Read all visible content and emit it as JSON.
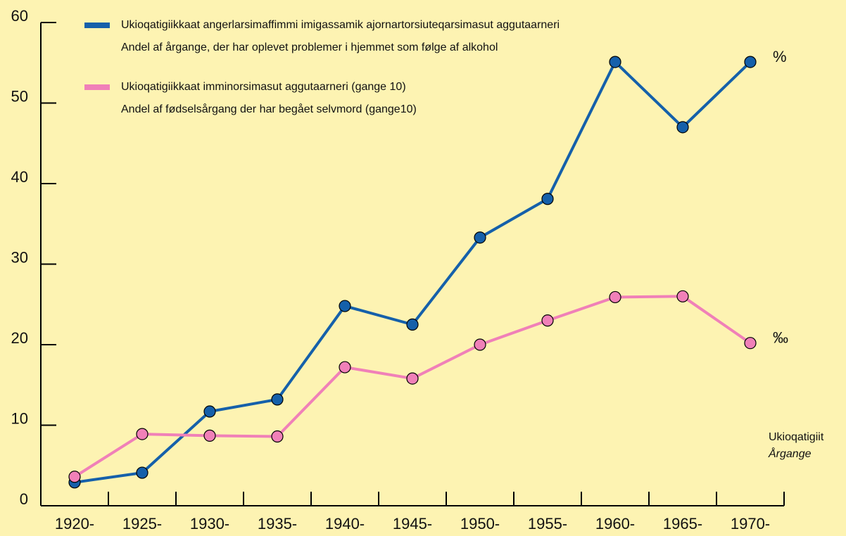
{
  "chart_data": {
    "type": "line",
    "categories": [
      "1920-",
      "1925-",
      "1930-",
      "1935-",
      "1940-",
      "1945-",
      "1950-",
      "1955-",
      "1960-",
      "1965-",
      "1970-"
    ],
    "series": [
      {
        "name": "Ukioqatigiikkaat angerlarsimaffimmi imigassamik ajornartorsiuteqarsimasut aggutaarneri",
        "subname": "Andel af årgange, der har oplevet problemer i hjemmet som følge af alkohol",
        "color": "#1560aa",
        "unit_label": "%",
        "values": [
          2.9,
          4.1,
          11.7,
          13.2,
          24.8,
          22.5,
          33.3,
          38.1,
          55.1,
          47.0,
          55.1
        ]
      },
      {
        "name": "Ukioqatigiikkaat imminorsimasut aggutaarneri (gange 10)",
        "subname": "Andel af fødselsårgang der har begået selvmord (gange10)",
        "color": "#f080b8",
        "unit_label": "‰",
        "values": [
          3.6,
          8.9,
          8.7,
          8.6,
          17.2,
          15.8,
          20.0,
          23.0,
          25.9,
          26.0,
          20.2
        ]
      }
    ],
    "xlabel": "Ukioqatigiit",
    "xlabel_sub": "Årgange",
    "ylim": [
      0,
      60
    ],
    "yticks": [
      0,
      10,
      20,
      30,
      40,
      50,
      60
    ]
  }
}
